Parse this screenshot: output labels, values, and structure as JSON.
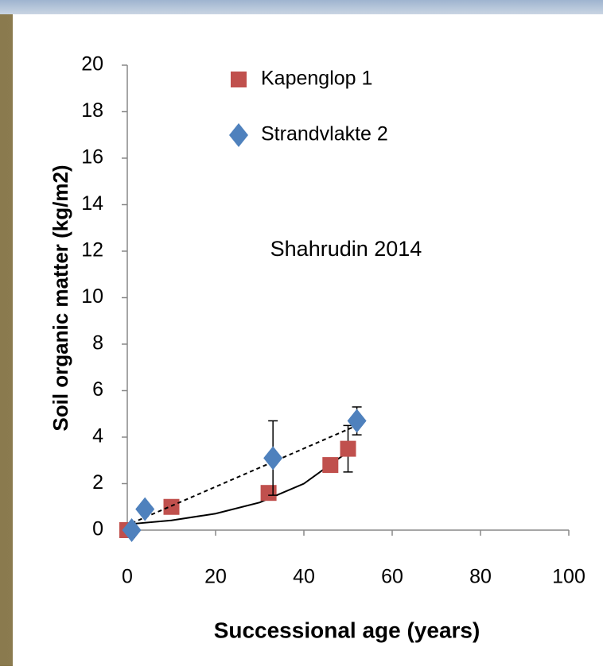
{
  "chart_data": {
    "type": "scatter",
    "xlabel": "Successional age (years)",
    "ylabel": "Soil organic matter (kg/m2)",
    "annotation": "Shahrudin 2014",
    "xlim": [
      0,
      100
    ],
    "xticks": [
      0,
      20,
      40,
      60,
      80,
      100
    ],
    "ylim": [
      0,
      20
    ],
    "yticks": [
      0,
      2,
      4,
      6,
      8,
      10,
      12,
      14,
      16,
      18,
      20
    ],
    "legend": "upper center",
    "series": [
      {
        "name": "Kapenglop 1",
        "color": "#c0504d",
        "marker": "square",
        "x": [
          0,
          10,
          32,
          46,
          50
        ],
        "values": [
          0,
          1.0,
          1.6,
          2.8,
          3.5
        ],
        "errors": [
          null,
          null,
          null,
          null,
          1.0
        ],
        "trendline": {
          "style": "solid",
          "x": [
            0,
            10,
            20,
            30,
            40,
            50
          ],
          "values": [
            0.25,
            0.42,
            0.71,
            1.19,
            2.0,
            3.37
          ]
        }
      },
      {
        "name": "Strandvlakte 2",
        "color": "#4f81bd",
        "marker": "diamond",
        "x": [
          1,
          4,
          33,
          52
        ],
        "values": [
          0,
          0.9,
          3.1,
          4.7
        ],
        "errors": [
          null,
          null,
          1.6,
          0.6
        ],
        "trendline": {
          "style": "dashed",
          "x": [
            1,
            52
          ],
          "values": [
            0.3,
            4.5
          ]
        }
      }
    ]
  }
}
